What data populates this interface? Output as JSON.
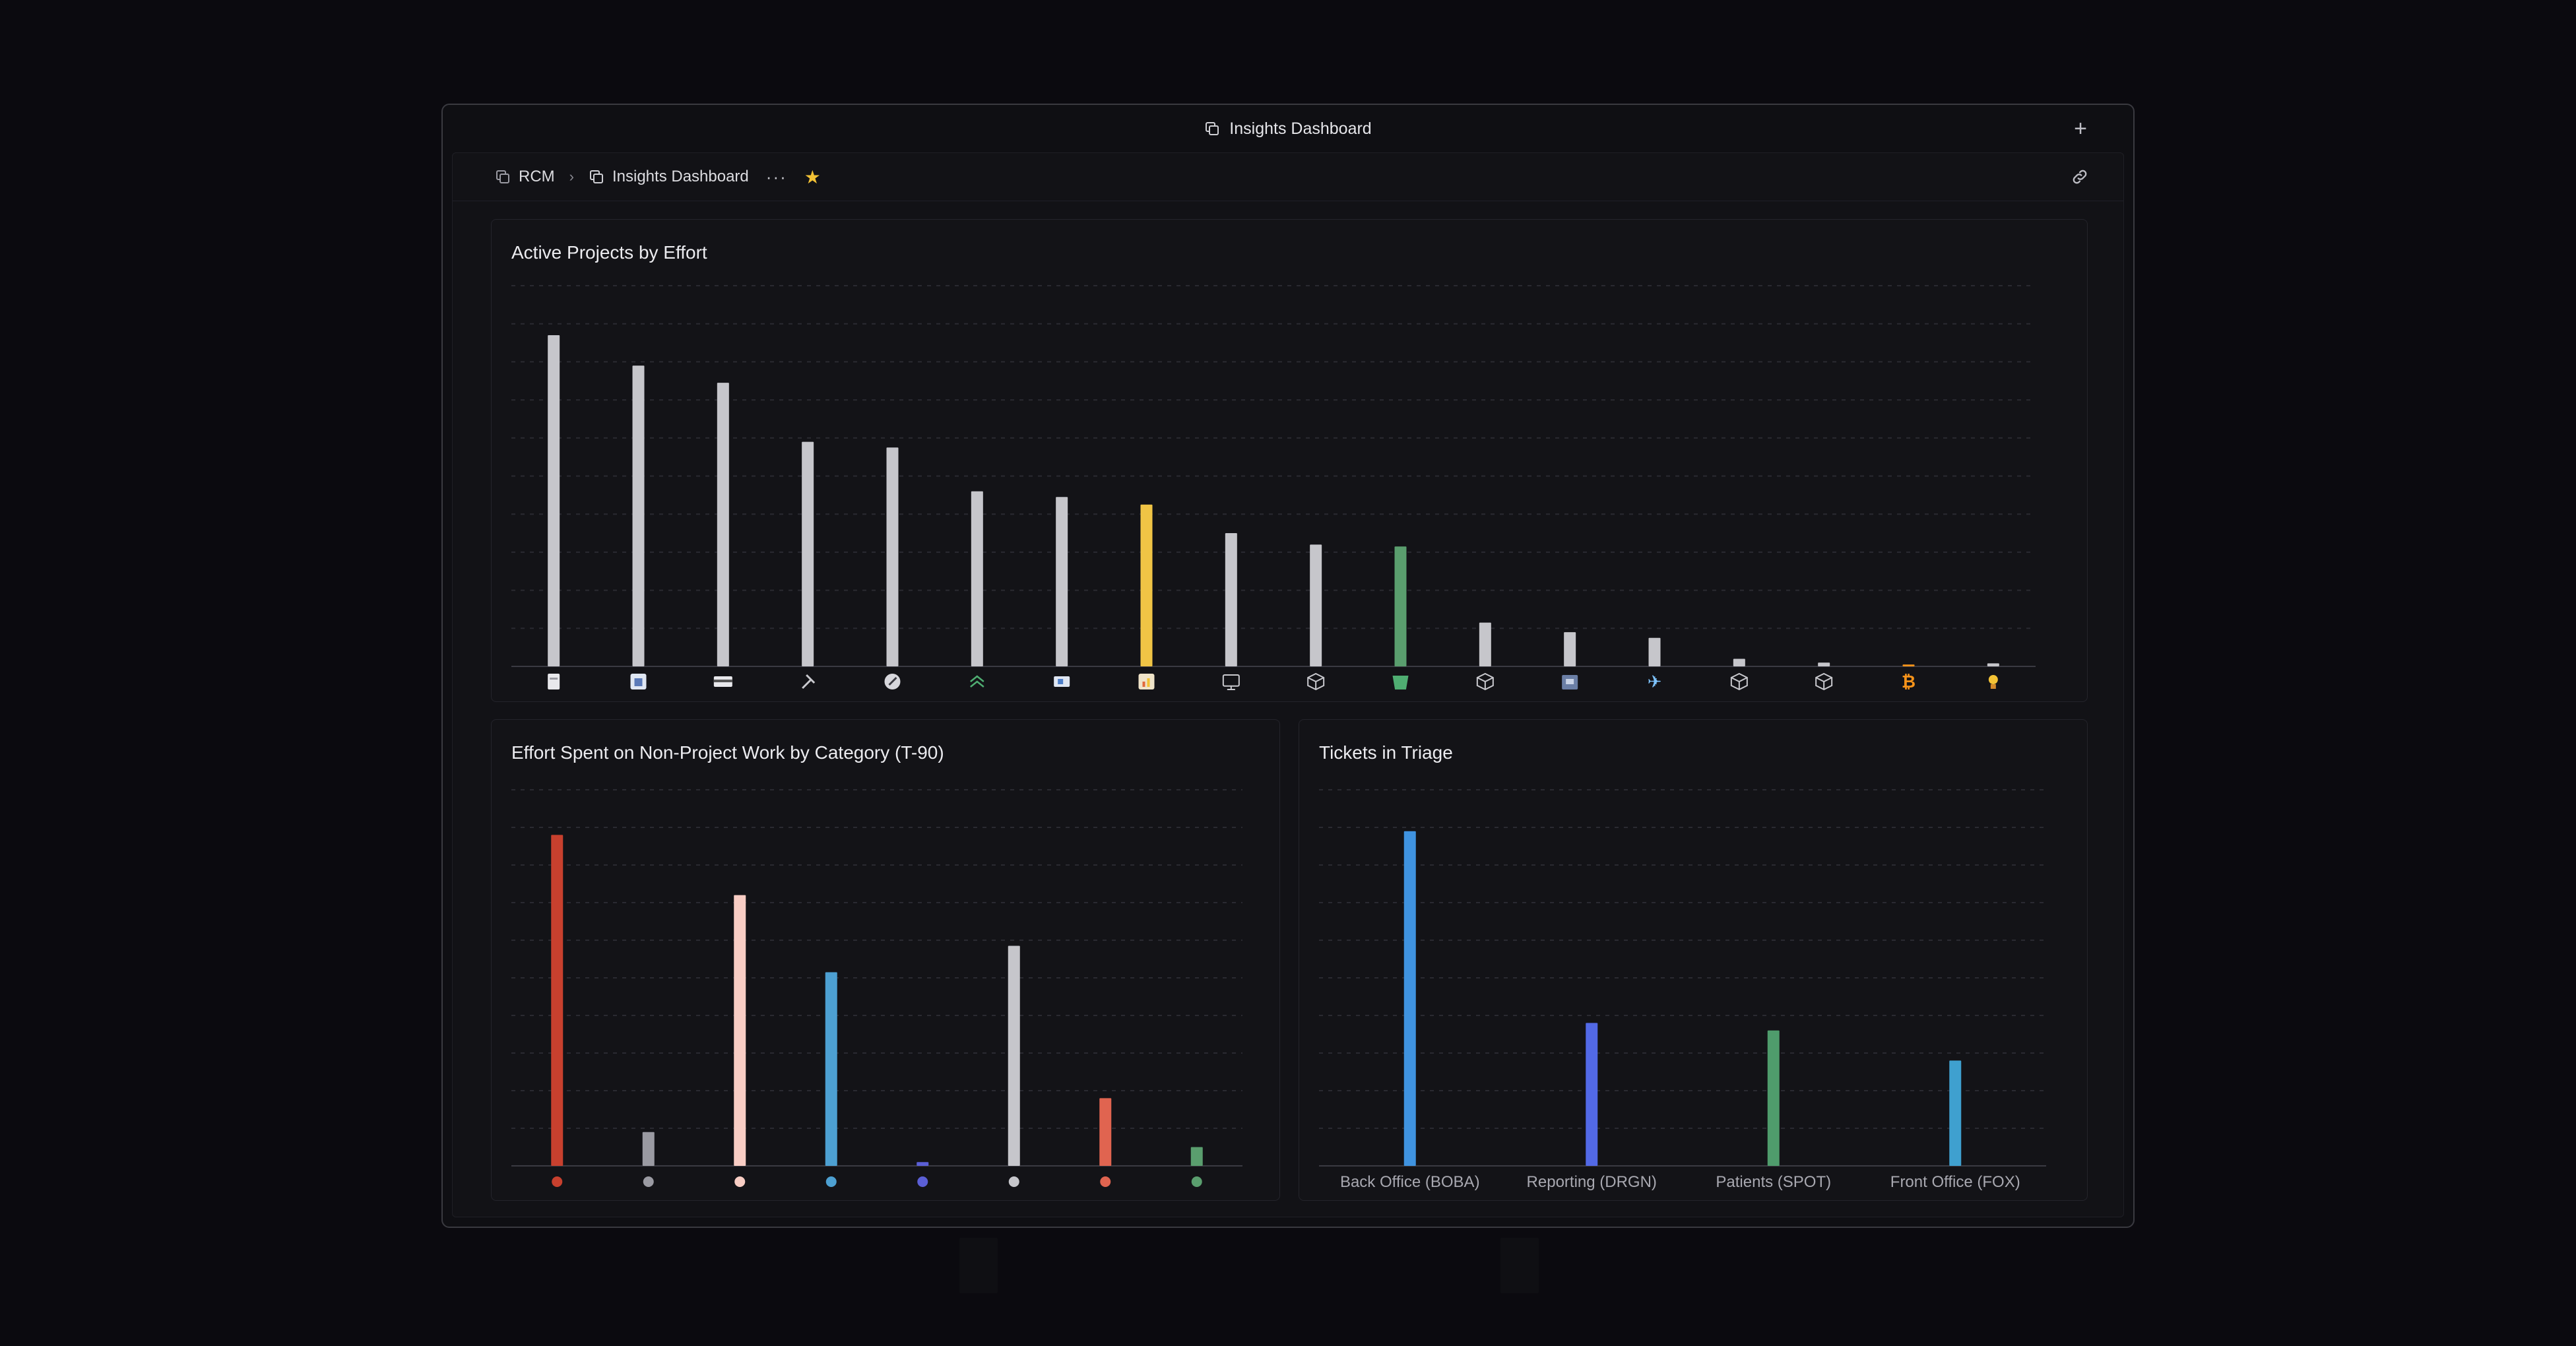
{
  "window": {
    "title": "Insights Dashboard",
    "new_tab_label": "+"
  },
  "breadcrumb": {
    "root": "RCM",
    "current": "Insights Dashboard",
    "more_label": "···",
    "favorite_icon": "star-icon"
  },
  "colors": {
    "accent_gold": "#f3c235",
    "bar_gray": "#c6c6cb",
    "grid": "#2c2c33"
  },
  "charts": [
    {
      "id": "active-projects",
      "title": "Active Projects by Effort",
      "chart_data": {
        "type": "bar",
        "title": "Active Projects by Effort",
        "xlabel": "",
        "ylabel": "",
        "ylim": [
          0,
          100
        ],
        "grid": true,
        "x_tick_style": "project icons",
        "categories": [
          "p1",
          "p2",
          "p3",
          "p4",
          "p5",
          "p6",
          "p7",
          "p8",
          "p9",
          "p10",
          "p11",
          "p12",
          "p13",
          "p14",
          "p15",
          "p16",
          "p17",
          "p18"
        ],
        "values": [
          87,
          79,
          74.5,
          59,
          57.5,
          46,
          44.5,
          42.5,
          35,
          32,
          31.5,
          11.5,
          9,
          7.5,
          2,
          1,
          0.5,
          0.8
        ],
        "colors": [
          "#c6c6cb",
          "#c6c6cb",
          "#c6c6cb",
          "#c6c6cb",
          "#c6c6cb",
          "#c6c6cb",
          "#c6c6cb",
          "#f0c445",
          "#c6c6cb",
          "#c6c6cb",
          "#5a9e6e",
          "#c6c6cb",
          "#c6c6cb",
          "#c6c6cb",
          "#c6c6cb",
          "#c6c6cb",
          "#f7931a",
          "#c6c6cb"
        ],
        "icons": [
          "document-icon",
          "calendar-icon",
          "card-icon",
          "hammer-icon",
          "compass-icon",
          "chevrons-up-icon",
          "id-card-icon",
          "chart-icon",
          "monitor-icon",
          "cube-icon",
          "bucket-icon",
          "cube-icon",
          "building-icon",
          "airplane-icon",
          "cube-icon",
          "cube-icon",
          "bitcoin-icon",
          "lightbulb-icon"
        ]
      }
    },
    {
      "id": "non-project-effort",
      "title": "Effort Spent on Non-Project Work by Category (T-90)",
      "chart_data": {
        "type": "bar",
        "title": "Effort Spent on Non-Project Work by Category (T-90)",
        "xlabel": "",
        "ylabel": "",
        "ylim": [
          0,
          100
        ],
        "grid": true,
        "x_tick_style": "colored dots",
        "categories": [
          "c1",
          "c2",
          "c3",
          "c4",
          "c5",
          "c6",
          "c7",
          "c8"
        ],
        "values": [
          88,
          9,
          72,
          51.5,
          1,
          58.5,
          18,
          5
        ],
        "colors": [
          "#c8402e",
          "#9a9aa2",
          "#f8cdc4",
          "#4da0d2",
          "#5b5fd6",
          "#c6c6cb",
          "#e06450",
          "#5a9e6e"
        ]
      }
    },
    {
      "id": "tickets-triage",
      "title": "Tickets in Triage",
      "chart_data": {
        "type": "bar",
        "title": "Tickets in Triage",
        "xlabel": "",
        "ylabel": "",
        "ylim": [
          0,
          100
        ],
        "grid": true,
        "categories": [
          "Back Office (BOBA)",
          "Reporting (DRGN)",
          "Patients (SPOT)",
          "Front Office (FOX)"
        ],
        "values": [
          89,
          38,
          36,
          28
        ],
        "colors": [
          "#3f93e0",
          "#5269e6",
          "#4f9c6c",
          "#3fa0cf"
        ]
      }
    }
  ]
}
